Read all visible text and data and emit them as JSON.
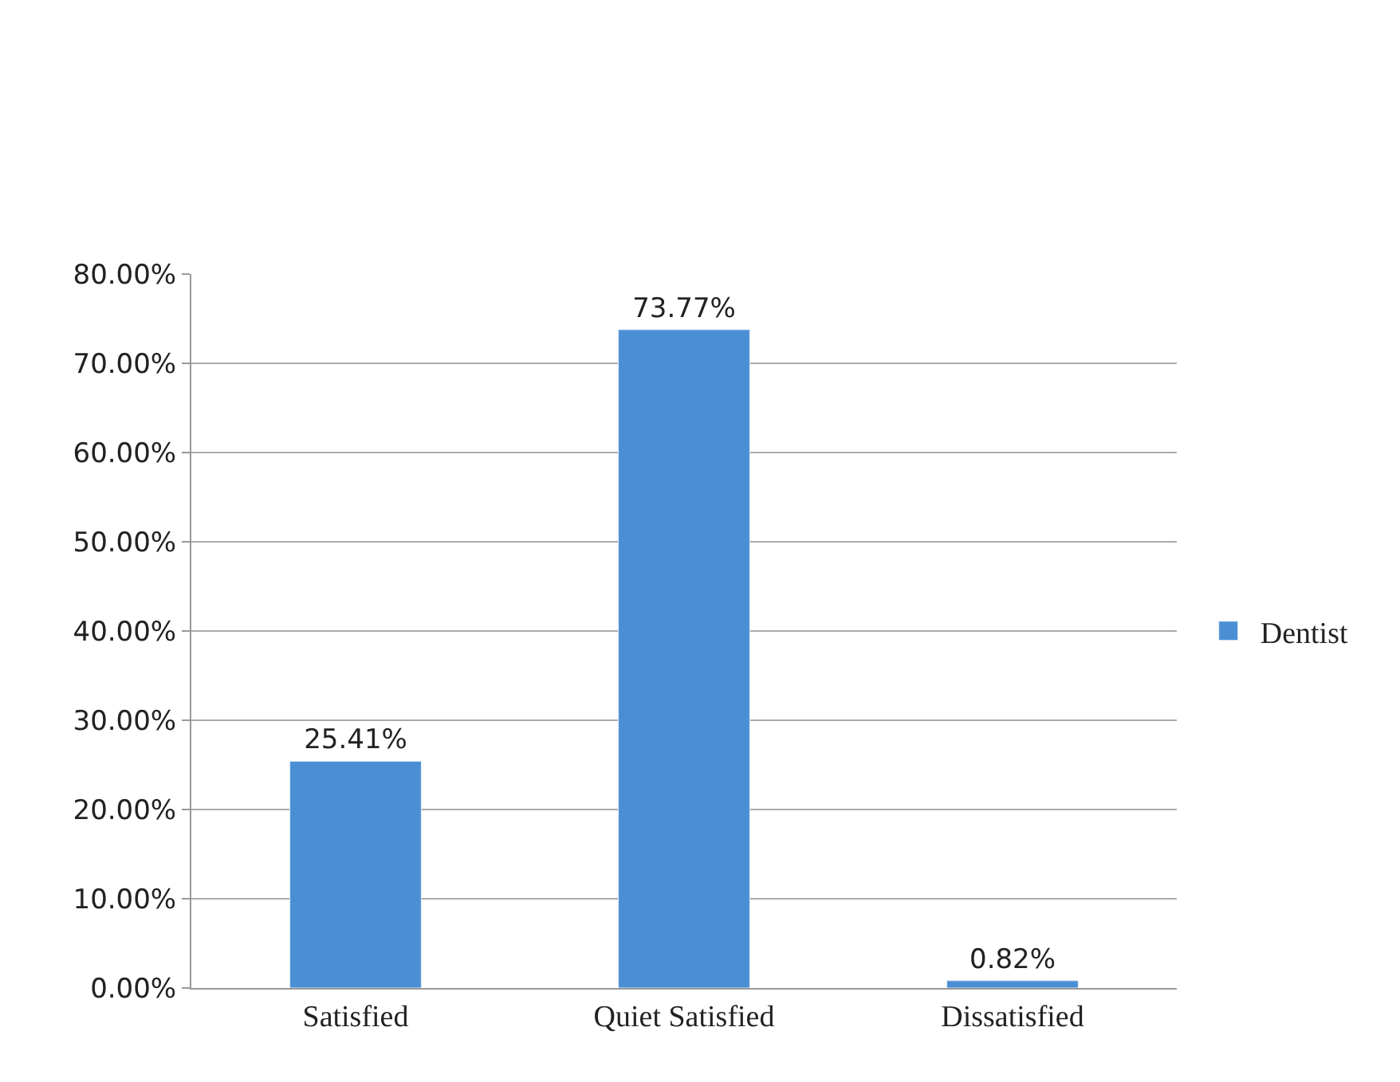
{
  "chart_data": {
    "type": "bar",
    "categories": [
      "Satisfied",
      "Quiet Satisfied",
      "Dissatisfied"
    ],
    "series": [
      {
        "name": "Dentist",
        "color": "#4a8fd4",
        "values": [
          25.41,
          73.77,
          0.82
        ],
        "value_labels": [
          "25.41%",
          "73.77%",
          "0.82%"
        ]
      }
    ],
    "ylim": [
      0,
      80
    ],
    "yticks": [
      {
        "value": 0,
        "label": "0.00%"
      },
      {
        "value": 10,
        "label": "10.00%"
      },
      {
        "value": 20,
        "label": "20.00%"
      },
      {
        "value": 30,
        "label": "30.00%"
      },
      {
        "value": 40,
        "label": "40.00%"
      },
      {
        "value": 50,
        "label": "50.00%"
      },
      {
        "value": 60,
        "label": "60.00%"
      },
      {
        "value": 70,
        "label": "70.00%"
      },
      {
        "value": 80,
        "label": "80.00%"
      }
    ],
    "grid": "y",
    "legend": "right"
  }
}
